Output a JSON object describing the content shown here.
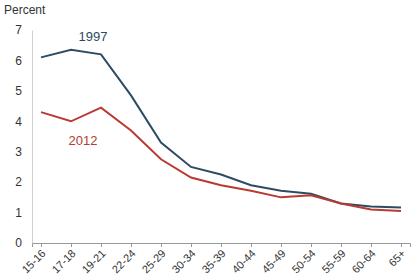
{
  "chart_data": {
    "type": "line",
    "y_label": "Percent",
    "categories": [
      "15-16",
      "17-18",
      "19-21",
      "22-24",
      "25-29",
      "30-34",
      "35-39",
      "40-44",
      "45-49",
      "50-54",
      "55-59",
      "60-64",
      "65+"
    ],
    "series": [
      {
        "name": "1997",
        "color": "#2d4b62",
        "values": [
          6.1,
          6.35,
          6.2,
          4.85,
          3.3,
          2.5,
          2.25,
          1.9,
          1.72,
          1.62,
          1.3,
          1.2,
          1.17
        ]
      },
      {
        "name": "2012",
        "color": "#b83a32",
        "values": [
          4.3,
          4.0,
          4.45,
          3.7,
          2.75,
          2.15,
          1.9,
          1.72,
          1.5,
          1.57,
          1.3,
          1.1,
          1.05
        ]
      }
    ],
    "ylim": [
      0,
      7
    ],
    "yticks": [
      0,
      1,
      2,
      3,
      4,
      5,
      6,
      7
    ],
    "grid": false
  }
}
